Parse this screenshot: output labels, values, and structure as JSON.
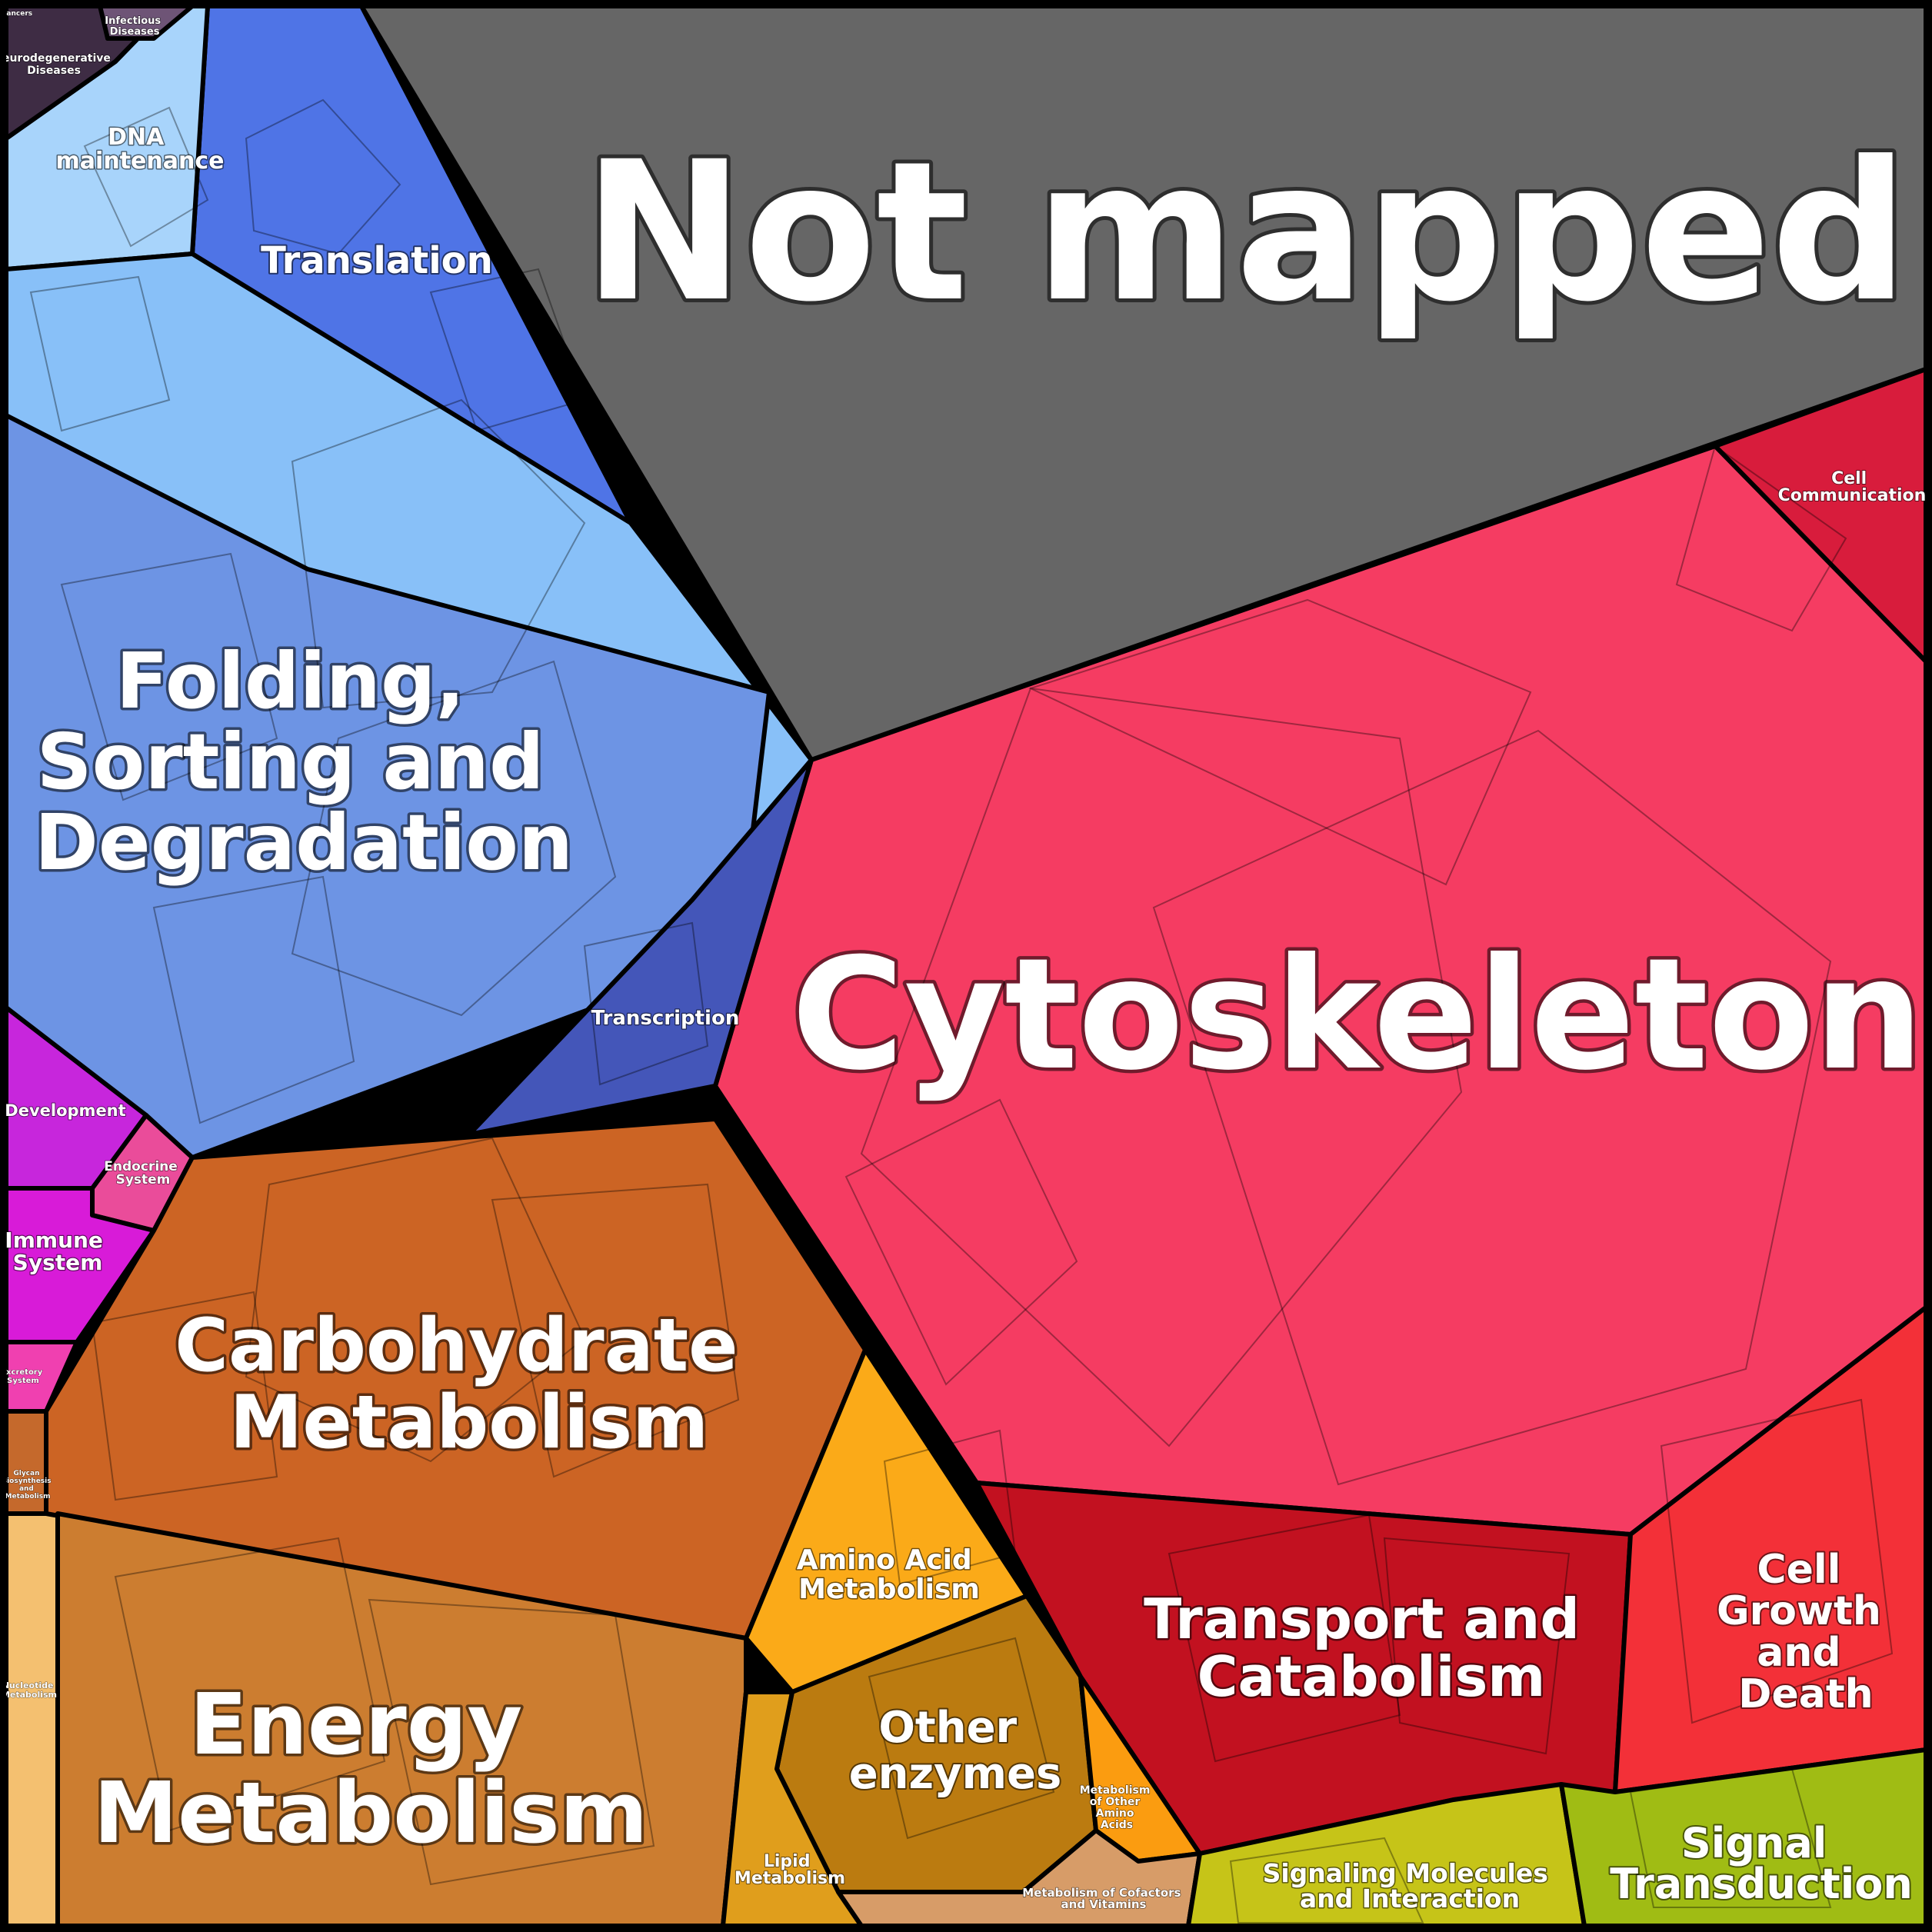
{
  "labels": {
    "cancers": "Cancers",
    "infectious_diseases": [
      "Infectious",
      "Diseases"
    ],
    "neurodegenerative_diseases": [
      "Neurodegenerative",
      "Diseases"
    ],
    "dna_maintenance": [
      "DNA",
      "maintenance"
    ],
    "translation": "Translation",
    "not_mapped": "Not mapped",
    "folding_sorting_degradation": [
      "Folding,",
      "Sorting and",
      "Degradation"
    ],
    "transcription": "Transcription",
    "cell_communication": [
      "Cell",
      "Communication"
    ],
    "cytoskeleton": "Cytoskeleton",
    "development": "Development",
    "endocrine_system": [
      "Endocrine",
      "System"
    ],
    "immune_system": [
      "Immune",
      "System"
    ],
    "excretory_system": [
      "Excretory",
      "System"
    ],
    "glycan_biosynthesis": [
      "Glycan",
      "Biosynthesis",
      "and",
      "Metabolism"
    ],
    "nucleotide_metabolism": [
      "Nucleotide",
      "Metabolism"
    ],
    "carbohydrate_metabolism": [
      "Carbohydrate",
      "Metabolism"
    ],
    "amino_acid_metabolism": [
      "Amino Acid",
      "Metabolism"
    ],
    "energy_metabolism": [
      "Energy",
      "Metabolism"
    ],
    "other_enzymes": [
      "Other",
      "enzymes"
    ],
    "metabolism_other_amino_acids": [
      "Metabolism",
      "of Other",
      "Amino",
      "Acids"
    ],
    "lipid_metabolism": [
      "Lipid",
      "Metabolism"
    ],
    "cofactors_vitamins": [
      "Metabolism of Cofactors",
      "and Vitamins"
    ],
    "transport_catabolism": [
      "Transport and",
      "Catabolism"
    ],
    "cell_growth_death": [
      "Cell",
      "Growth",
      "and",
      "Death"
    ],
    "signaling_molecules": [
      "Signaling Molecules",
      "and Interaction"
    ],
    "signal_transduction": [
      "Signal",
      "Transduction"
    ]
  },
  "colors": {
    "border": "#000000",
    "not_mapped": "#666666",
    "cytoskeleton": "#f53c62",
    "cell_communication": "#d81c3c",
    "transport_catabolism": "#c21120",
    "cell_growth_death": "#f33038",
    "folding_sorting_degradation": "#6d94e4",
    "translation": "#4f74e6",
    "transcription": "#4456b9",
    "dna_maintenance": "#a8d4fb",
    "genetic_light": "#88c0f8",
    "neurodegenerative_diseases": "#3e2c44",
    "infectious_diseases": "#6e5476",
    "development": "#c726dc",
    "immune_system": "#d81bd8",
    "endocrine_system": "#ea4c9a",
    "excretory_system": "#f040b0",
    "carbohydrate_metabolism": "#cc6424",
    "energy_metabolism": "#cc7d30",
    "nucleotide_metabolism": "#f4c070",
    "glycan_biosynthesis": "#c5692c",
    "amino_acid_metabolism": "#fbaa18",
    "other_enzymes": "#bb7b10",
    "lipid_metabolism": "#e09e1c",
    "metabolism_other_amino_acids": "#fb9c10",
    "cofactors_vitamins": "#d79c68",
    "signaling_molecules": "#c6c418",
    "signal_transduction": "#a0bc14"
  }
}
